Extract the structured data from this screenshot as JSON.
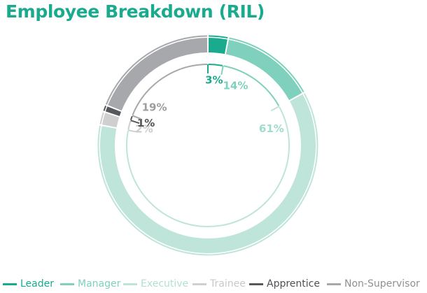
{
  "page": {
    "title": "Employee Breakdown (RIL)",
    "title_color": "#1aab8e"
  },
  "chart_data": {
    "type": "pie",
    "variant": "donut",
    "title": "Employee Breakdown (RIL)",
    "categories": [
      "Leader",
      "Manager",
      "Executive",
      "Trainee",
      "Apprentice",
      "Non-Supervisor"
    ],
    "values": [
      3,
      14,
      61,
      2,
      1,
      19
    ],
    "labels": [
      "3%",
      "14%",
      "61%",
      "2%",
      "1%",
      "19%"
    ],
    "colors": [
      "#1aab8e",
      "#7fd0bd",
      "#bfe5da",
      "#cfcfcf",
      "#55585c",
      "#a7a8ab"
    ],
    "label_colors": [
      "#1aab8e",
      "#7fd0bd",
      "#9fdccc",
      "#cccccc",
      "#555555",
      "#9d9d9d"
    ],
    "legend_position": "bottom"
  },
  "legend": [
    {
      "label": "Leader",
      "color": "#1aab8e",
      "text_color": "#1aab8e"
    },
    {
      "label": "Manager",
      "color": "#7fd0bd",
      "text_color": "#7fd0bd"
    },
    {
      "label": "Executive",
      "color": "#bfe5da",
      "text_color": "#b3e0d3"
    },
    {
      "label": "Trainee",
      "color": "#cfcfcf",
      "text_color": "#c8c8c8"
    },
    {
      "label": "Apprentice",
      "color": "#55585c",
      "text_color": "#4e5054"
    },
    {
      "label": "Non-Supervisor",
      "color": "#a7a8ab",
      "text_color": "#8f9094"
    }
  ]
}
